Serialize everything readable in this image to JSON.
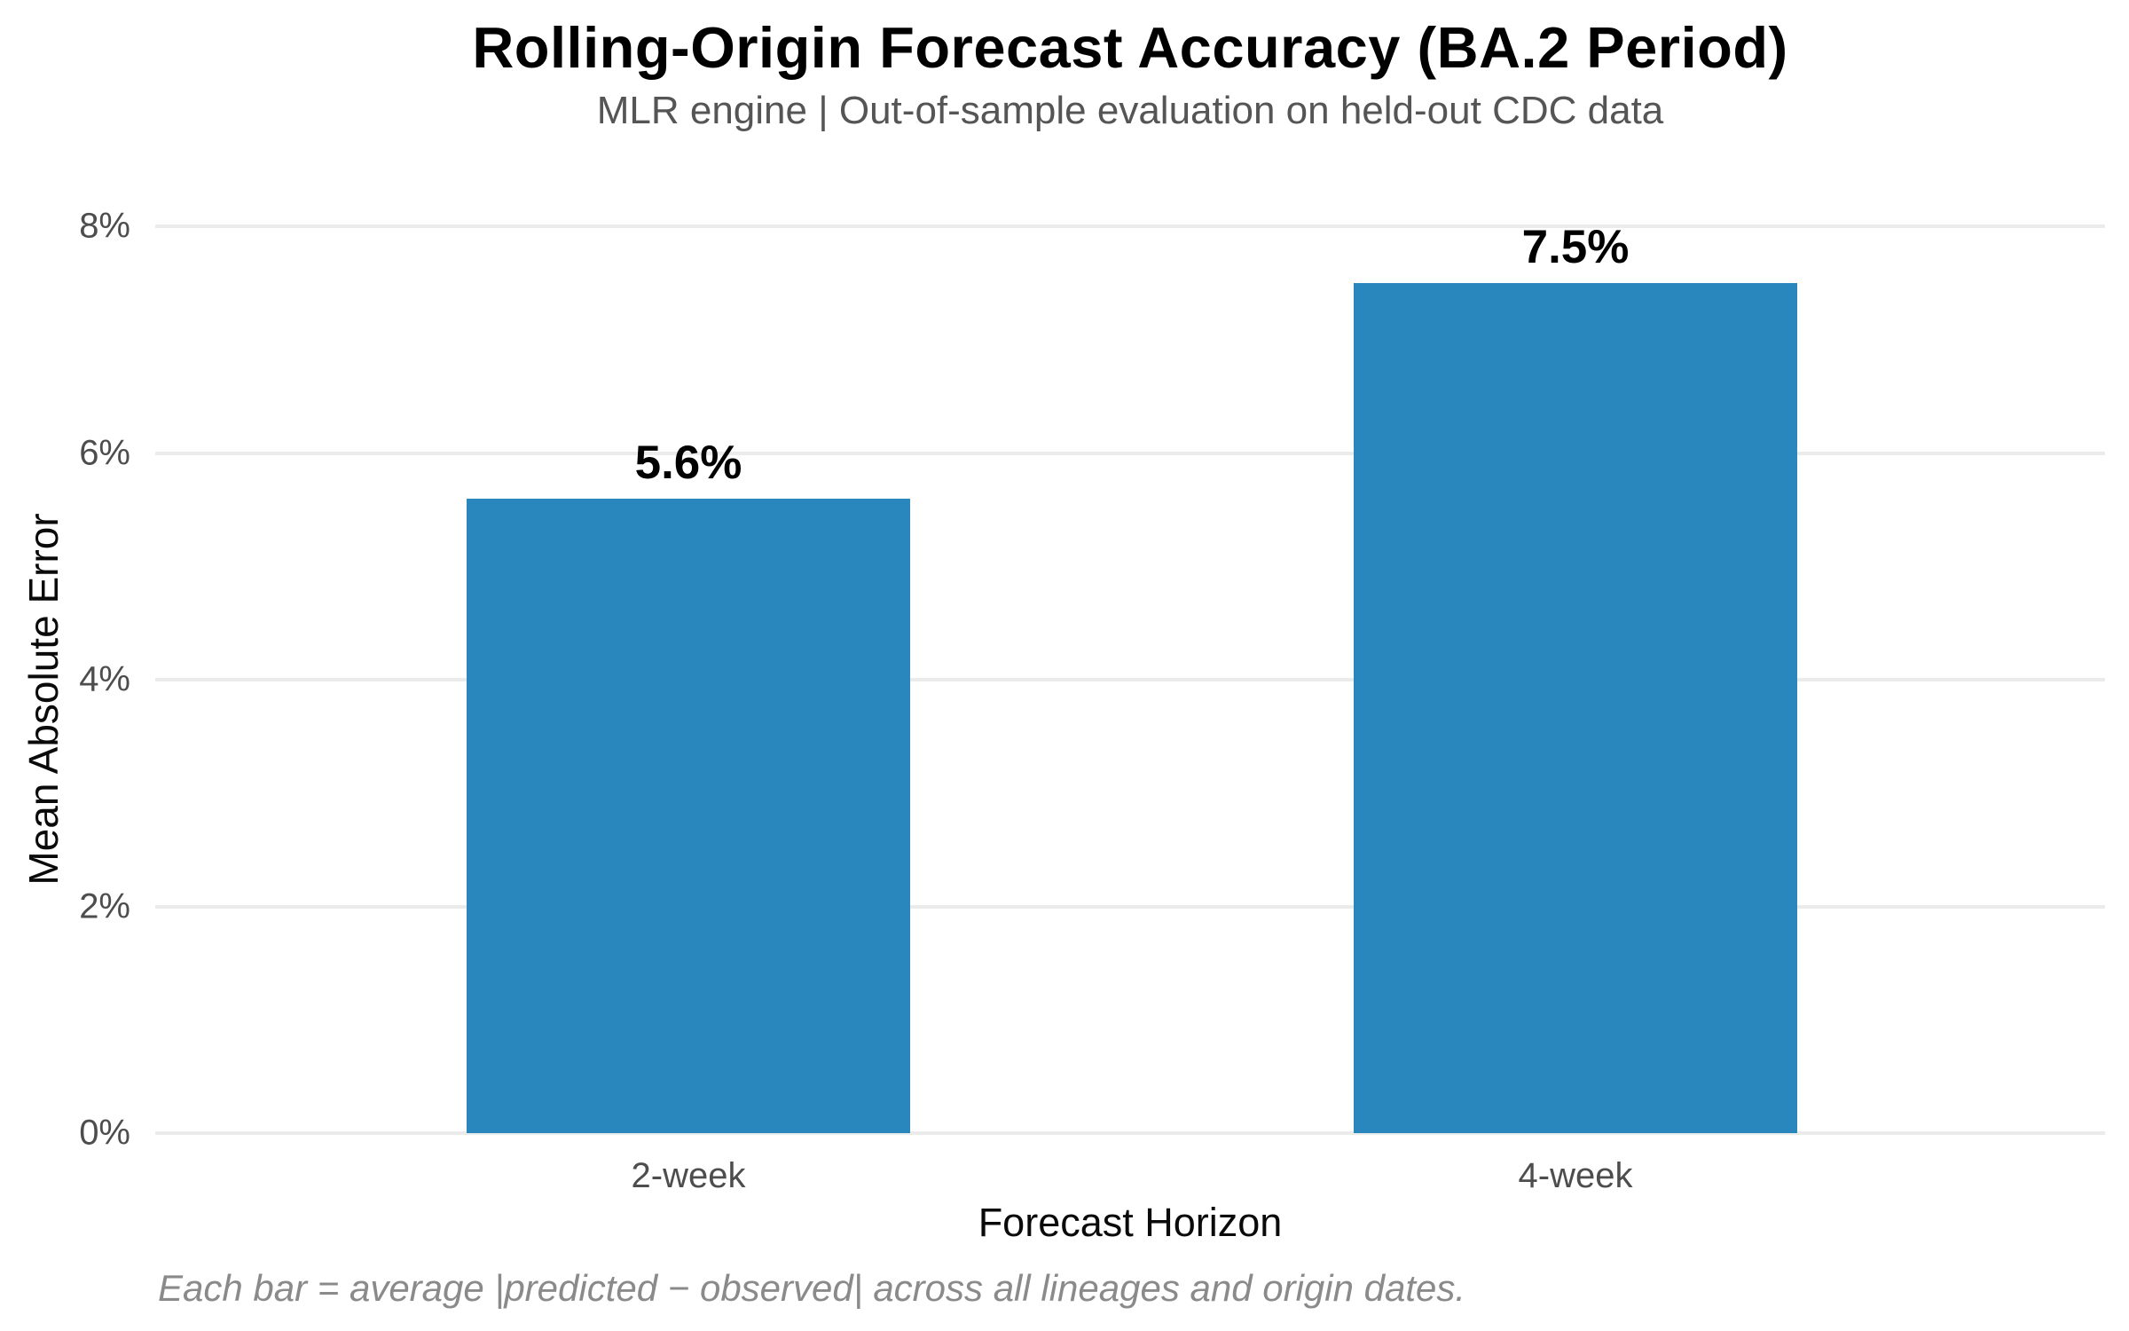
{
  "chart_data": {
    "type": "bar",
    "title": "Rolling-Origin Forecast Accuracy (BA.2 Period)",
    "subtitle": "MLR engine | Out-of-sample evaluation on held-out CDC data",
    "xlabel": "Forecast Horizon",
    "ylabel": "Mean Absolute Error",
    "categories": [
      "2-week",
      "4-week"
    ],
    "values": [
      5.6,
      7.5
    ],
    "value_labels": [
      "5.6%",
      "7.5%"
    ],
    "ylim": [
      0,
      8
    ],
    "yticks": [
      0,
      2,
      4,
      6,
      8
    ],
    "ytick_labels": [
      "0%",
      "2%",
      "4%",
      "6%",
      "8%"
    ],
    "grid": "horizontal, light gray, on",
    "legend": "none",
    "footnote": "Each bar = average |predicted − observed| across all lineages and origin dates.",
    "colors": {
      "bar": "#2a87bd",
      "gridline": "#ebebeb",
      "title_text": "#000000",
      "subtitle_text": "#555555",
      "tick_text": "#4d4d4d",
      "axis_label_text": "#0a0a0a",
      "footnote_text": "#8a8a8a",
      "background": "#ffffff"
    }
  }
}
